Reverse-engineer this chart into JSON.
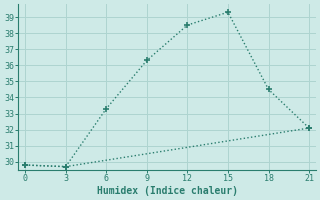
{
  "xlabel": "Humidex (Indice chaleur)",
  "line1_x": [
    0,
    3,
    6,
    9,
    12,
    15,
    18,
    21
  ],
  "line1_y": [
    29.8,
    29.7,
    33.3,
    36.3,
    38.5,
    39.3,
    34.5,
    32.1
  ],
  "line2_x": [
    0,
    3,
    21
  ],
  "line2_y": [
    29.8,
    29.7,
    32.1
  ],
  "color": "#2a7d6e",
  "bg_color": "#ceeae7",
  "grid_color": "#aed4d0",
  "xlim": [
    -0.5,
    21.5
  ],
  "ylim": [
    29.5,
    39.8
  ],
  "xticks": [
    0,
    3,
    6,
    9,
    12,
    15,
    18,
    21
  ],
  "yticks": [
    30,
    31,
    32,
    33,
    34,
    35,
    36,
    37,
    38,
    39
  ],
  "ytick_labels": [
    "30",
    "31",
    "32",
    "33",
    "34",
    "35",
    "36",
    "37",
    "38",
    "39"
  ],
  "markersize": 4,
  "linewidth": 1.0,
  "fontsize_ticks": 6,
  "fontsize_xlabel": 7
}
